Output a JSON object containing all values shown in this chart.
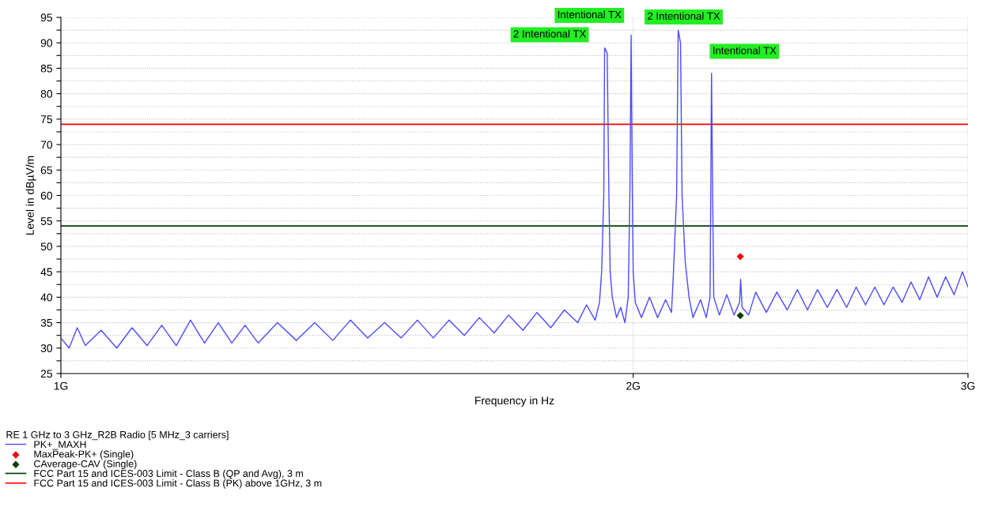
{
  "chart_data": {
    "type": "line",
    "xlabel": "Frequency in Hz",
    "ylabel": "Level in dBµV/m",
    "legend_title": "RE 1 GHz to 3 GHz_R2B Radio [5 MHz_3 carriers]",
    "log": "x",
    "grid": true,
    "legend": "bottom",
    "xlim": [
      1,
      3
    ],
    "xticks": [
      {
        "value": 1,
        "label": "1G"
      },
      {
        "value": 2,
        "label": "2G"
      },
      {
        "value": 3,
        "label": "3G"
      }
    ],
    "ylim": [
      25,
      95
    ],
    "yticks": [
      25,
      {
        "value": 27.5,
        "label": null
      },
      30,
      {
        "value": 32.5,
        "label": null
      },
      35,
      {
        "value": 37.5,
        "label": null
      },
      40,
      {
        "value": 42.5,
        "label": null
      },
      45,
      {
        "value": 47.5,
        "label": null
      },
      50,
      {
        "value": 52.5,
        "label": null
      },
      55,
      {
        "value": 57.5,
        "label": null
      },
      60,
      {
        "value": 62.5,
        "label": null
      },
      65,
      {
        "value": 67.5,
        "label": null
      },
      70,
      {
        "value": 72.5,
        "label": null
      },
      75,
      {
        "value": 77.5,
        "label": null
      },
      80,
      {
        "value": 82.5,
        "label": null
      },
      85,
      {
        "value": 87.5,
        "label": null
      },
      90,
      {
        "value": 92.5,
        "label": null
      },
      95
    ],
    "series": [
      {
        "name": "PK+_MAXH",
        "color": "#4b4bff",
        "x": [
          1.0,
          1.01,
          1.02,
          1.03,
          1.05,
          1.07,
          1.09,
          1.11,
          1.13,
          1.15,
          1.17,
          1.19,
          1.21,
          1.23,
          1.25,
          1.27,
          1.3,
          1.33,
          1.36,
          1.39,
          1.42,
          1.45,
          1.48,
          1.51,
          1.54,
          1.57,
          1.6,
          1.63,
          1.66,
          1.69,
          1.72,
          1.75,
          1.78,
          1.81,
          1.84,
          1.87,
          1.89,
          1.91,
          1.92,
          1.925,
          1.93,
          1.932,
          1.938,
          1.942,
          1.945,
          1.95,
          1.96,
          1.97,
          1.98,
          1.988,
          1.992,
          1.995,
          1.998,
          2.0,
          2.005,
          2.02,
          2.04,
          2.06,
          2.08,
          2.095,
          2.1,
          2.108,
          2.112,
          2.118,
          2.122,
          2.13,
          2.14,
          2.15,
          2.17,
          2.185,
          2.195,
          2.197,
          2.199,
          2.202,
          2.205,
          2.22,
          2.24,
          2.26,
          2.275,
          2.278,
          2.282,
          2.3,
          2.32,
          2.35,
          2.38,
          2.41,
          2.44,
          2.47,
          2.5,
          2.53,
          2.56,
          2.59,
          2.62,
          2.65,
          2.68,
          2.71,
          2.74,
          2.77,
          2.8,
          2.83,
          2.86,
          2.89,
          2.92,
          2.95,
          2.98,
          3.0
        ],
        "values": [
          32,
          30,
          34,
          30.5,
          33.5,
          30,
          34,
          30.5,
          34.5,
          30.5,
          35.5,
          31,
          35,
          31,
          34.5,
          31,
          35,
          31.5,
          35,
          31.5,
          35.5,
          32,
          35,
          32,
          35.5,
          32,
          35.5,
          32.5,
          36,
          33,
          36.5,
          33.5,
          37,
          34,
          37.5,
          35,
          38.5,
          35.5,
          39,
          45,
          60,
          89,
          88,
          60,
          45,
          40,
          36,
          38,
          35,
          40,
          60,
          91.5,
          60,
          45,
          39,
          36,
          40,
          36,
          39.5,
          37,
          45,
          60,
          92.5,
          90,
          60,
          47,
          40,
          36,
          39.5,
          36,
          40,
          60,
          84,
          60,
          40,
          36.5,
          40.5,
          36.5,
          39,
          43.5,
          38,
          36.5,
          41,
          37,
          41,
          37.5,
          41.5,
          37.5,
          41.5,
          38,
          41.5,
          38,
          42,
          38.5,
          42,
          38.5,
          42,
          39,
          43,
          39.5,
          44,
          40,
          44,
          40.5,
          45,
          42
        ]
      },
      {
        "name": "MaxPeak-PK+ (Single)",
        "type": "scatter",
        "color": "#ff0000",
        "marker": "diamond",
        "x": [
          2.277
        ],
        "values": [
          48.0
        ]
      },
      {
        "name": "CAverage-CAV (Single)",
        "type": "scatter",
        "color": "#004000",
        "marker": "diamond",
        "x": [
          2.277
        ],
        "values": [
          36.4
        ]
      }
    ],
    "ref_lines": [
      {
        "axis": "y",
        "value": 54,
        "label": "FCC Part 15 and ICES-003 Limit - Class B (QP and Avg), 3 m",
        "color": "#004000"
      },
      {
        "axis": "y",
        "value": 74,
        "label": "FCC Part 15 and ICES-003 Limit - Class B (PK) above 1GHz, 3 m",
        "color": "#ff0000"
      }
    ],
    "annotations": [
      {
        "text": "2 Intentional TX",
        "x": 1.932,
        "y": 89
      },
      {
        "text": "Intentional TX",
        "x": 1.995,
        "y": 91.5
      },
      {
        "text": "2 Intentional TX",
        "x": 2.112,
        "y": 92.5
      },
      {
        "text": "Intentional TX",
        "x": 2.199,
        "y": 84
      }
    ]
  }
}
